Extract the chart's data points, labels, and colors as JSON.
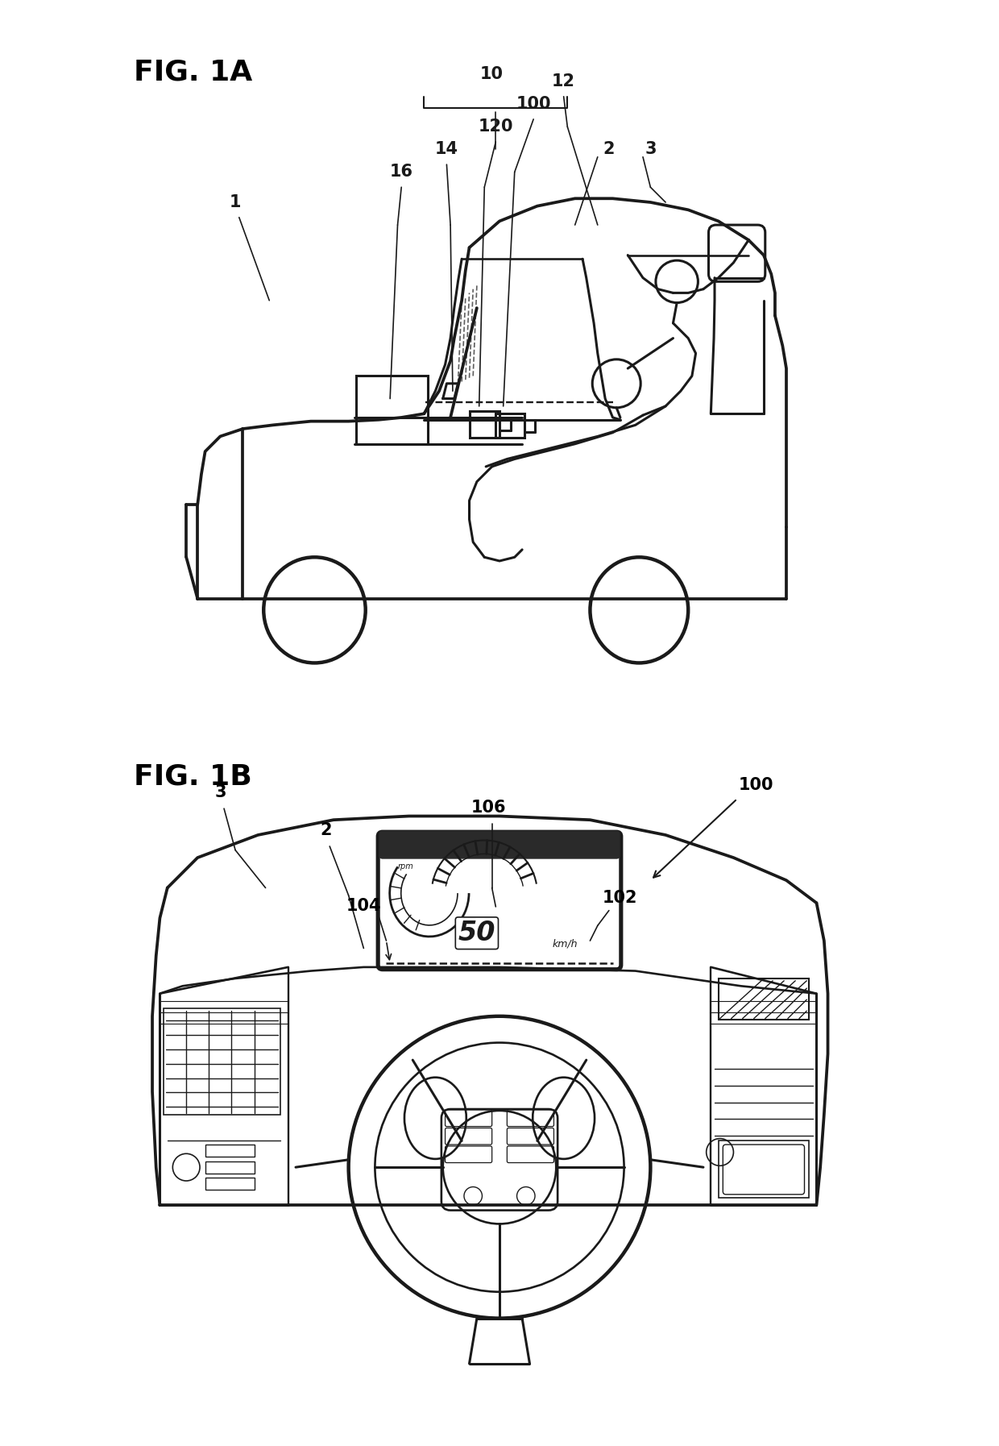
{
  "fig1a_label": "FIG. 1A",
  "fig1b_label": "FIG. 1B",
  "background_color": "#ffffff",
  "line_color": "#1a1a1a",
  "fig_width": 12.4,
  "fig_height": 17.94
}
